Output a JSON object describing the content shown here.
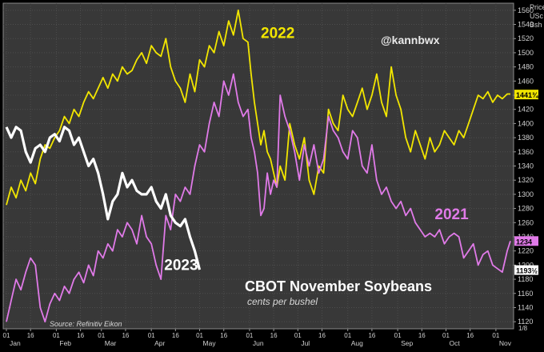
{
  "chart_data": {
    "type": "line",
    "title": "CBOT November Soybeans",
    "subtitle": "cents per bushel",
    "source": "Source: Refinitiv Eikon",
    "watermark": "@kannbwx",
    "ylabel_lines": [
      "Price",
      "USc",
      "Bsh"
    ],
    "ylim": [
      1110,
      1570
    ],
    "y_ticks": [
      1120,
      1140,
      1160,
      1180,
      1200,
      1220,
      1240,
      1260,
      1280,
      1300,
      1320,
      1340,
      1360,
      1380,
      1400,
      1420,
      1440,
      1460,
      1480,
      1500,
      1520,
      1540,
      1560
    ],
    "grid": true,
    "x_range": [
      0,
      313
    ],
    "x_day_ticks": [
      {
        "x": 0,
        "label": "01"
      },
      {
        "x": 15,
        "label": "16"
      },
      {
        "x": 31,
        "label": "01"
      },
      {
        "x": 46,
        "label": "16"
      },
      {
        "x": 59,
        "label": "01"
      },
      {
        "x": 74,
        "label": "16"
      },
      {
        "x": 90,
        "label": "01"
      },
      {
        "x": 105,
        "label": "16"
      },
      {
        "x": 120,
        "label": "01"
      },
      {
        "x": 135,
        "label": "16"
      },
      {
        "x": 151,
        "label": "01"
      },
      {
        "x": 166,
        "label": "16"
      },
      {
        "x": 181,
        "label": "01"
      },
      {
        "x": 196,
        "label": "16"
      },
      {
        "x": 212,
        "label": "01"
      },
      {
        "x": 227,
        "label": "16"
      },
      {
        "x": 243,
        "label": "01"
      },
      {
        "x": 258,
        "label": "16"
      },
      {
        "x": 273,
        "label": "01"
      },
      {
        "x": 288,
        "label": "16"
      },
      {
        "x": 304,
        "label": "01"
      }
    ],
    "x_month_ticks": [
      {
        "x": 0,
        "label": "Jan"
      },
      {
        "x": 31,
        "label": "Feb"
      },
      {
        "x": 59,
        "label": "Mar"
      },
      {
        "x": 90,
        "label": "Apr"
      },
      {
        "x": 120,
        "label": "May"
      },
      {
        "x": 151,
        "label": "Jun"
      },
      {
        "x": 181,
        "label": "Jul"
      },
      {
        "x": 212,
        "label": "Aug"
      },
      {
        "x": 243,
        "label": "Sep"
      },
      {
        "x": 273,
        "label": "Oct"
      },
      {
        "x": 304,
        "label": "Nov"
      }
    ],
    "price_tags": [
      {
        "value": 1441,
        "label": "1441¾",
        "color": "#f2e600",
        "text_color": "#000000"
      },
      {
        "value": 1234,
        "label": "1234",
        "color": "#e07ae8",
        "text_color": "#000000"
      },
      {
        "value": 1193,
        "label": "1193½",
        "color": "#ffffff",
        "text_color": "#000000"
      }
    ],
    "corner_label": "1/8",
    "series": [
      {
        "name": "2022",
        "color": "#f2e600",
        "x": [
          0,
          3,
          6,
          9,
          12,
          15,
          18,
          21,
          24,
          27,
          30,
          33,
          36,
          39,
          42,
          45,
          48,
          51,
          54,
          57,
          60,
          63,
          66,
          69,
          72,
          75,
          78,
          81,
          84,
          87,
          90,
          93,
          96,
          99,
          102,
          105,
          108,
          111,
          114,
          117,
          120,
          123,
          126,
          129,
          132,
          135,
          138,
          141,
          144,
          147,
          150,
          152,
          154,
          156,
          158,
          160,
          162,
          164,
          166,
          168,
          170,
          173,
          176,
          179,
          182,
          185,
          188,
          191,
          194,
          197,
          200,
          203,
          206,
          209,
          212,
          215,
          218,
          221,
          224,
          227,
          230,
          233,
          236,
          239,
          242,
          245,
          248,
          251,
          254,
          257,
          260,
          263,
          266,
          269,
          272,
          275,
          278,
          281,
          284,
          287,
          290,
          293,
          296,
          299,
          302,
          305,
          308,
          311,
          313
        ],
        "values": [
          1285,
          1310,
          1295,
          1320,
          1305,
          1330,
          1315,
          1350,
          1370,
          1365,
          1380,
          1390,
          1410,
          1400,
          1420,
          1410,
          1430,
          1445,
          1435,
          1450,
          1465,
          1450,
          1470,
          1460,
          1480,
          1470,
          1475,
          1490,
          1500,
          1485,
          1510,
          1500,
          1495,
          1520,
          1480,
          1460,
          1450,
          1430,
          1470,
          1445,
          1490,
          1480,
          1510,
          1500,
          1530,
          1510,
          1545,
          1525,
          1560,
          1520,
          1515,
          1470,
          1430,
          1400,
          1370,
          1390,
          1360,
          1350,
          1330,
          1310,
          1340,
          1320,
          1400,
          1370,
          1350,
          1380,
          1320,
          1300,
          1340,
          1330,
          1420,
          1400,
          1390,
          1440,
          1420,
          1410,
          1430,
          1450,
          1420,
          1440,
          1470,
          1430,
          1410,
          1480,
          1440,
          1420,
          1380,
          1360,
          1390,
          1370,
          1350,
          1380,
          1360,
          1370,
          1390,
          1380,
          1370,
          1390,
          1380,
          1400,
          1420,
          1440,
          1435,
          1445,
          1430,
          1440,
          1435,
          1441.75,
          1441.75
        ]
      },
      {
        "name": "2021",
        "color": "#e07ae8",
        "x": [
          0,
          3,
          6,
          9,
          12,
          15,
          18,
          21,
          24,
          27,
          30,
          33,
          36,
          39,
          42,
          45,
          48,
          51,
          54,
          57,
          60,
          63,
          66,
          69,
          72,
          75,
          78,
          81,
          84,
          87,
          90,
          93,
          96,
          99,
          102,
          105,
          108,
          111,
          114,
          117,
          120,
          123,
          126,
          129,
          132,
          135,
          138,
          141,
          144,
          147,
          150,
          152,
          154,
          156,
          158,
          160,
          162,
          164,
          166,
          168,
          170,
          173,
          176,
          179,
          182,
          185,
          188,
          191,
          194,
          197,
          200,
          203,
          206,
          209,
          212,
          215,
          218,
          221,
          224,
          227,
          230,
          233,
          236,
          239,
          242,
          245,
          248,
          251,
          254,
          257,
          260,
          263,
          266,
          269,
          272,
          275,
          278,
          281,
          284,
          287,
          290,
          293,
          296,
          299,
          302,
          305,
          308,
          311,
          313
        ],
        "values": [
          1120,
          1150,
          1180,
          1165,
          1190,
          1210,
          1200,
          1140,
          1120,
          1145,
          1160,
          1150,
          1170,
          1160,
          1180,
          1190,
          1175,
          1200,
          1185,
          1220,
          1210,
          1230,
          1220,
          1250,
          1240,
          1260,
          1250,
          1230,
          1270,
          1240,
          1230,
          1200,
          1180,
          1270,
          1250,
          1300,
          1290,
          1310,
          1300,
          1340,
          1370,
          1360,
          1400,
          1430,
          1410,
          1460,
          1440,
          1470,
          1430,
          1410,
          1420,
          1380,
          1360,
          1330,
          1270,
          1280,
          1330,
          1300,
          1320,
          1310,
          1440,
          1410,
          1390,
          1360,
          1320,
          1370,
          1340,
          1370,
          1330,
          1350,
          1410,
          1390,
          1380,
          1360,
          1350,
          1390,
          1380,
          1340,
          1330,
          1370,
          1320,
          1300,
          1310,
          1290,
          1280,
          1290,
          1270,
          1280,
          1260,
          1250,
          1240,
          1245,
          1240,
          1250,
          1230,
          1240,
          1245,
          1240,
          1210,
          1220,
          1230,
          1200,
          1215,
          1220,
          1200,
          1195,
          1190,
          1220,
          1234
        ]
      },
      {
        "name": "2023",
        "color": "#ffffff",
        "x": [
          0,
          3,
          6,
          9,
          12,
          15,
          18,
          21,
          24,
          27,
          30,
          33,
          36,
          39,
          42,
          45,
          48,
          51,
          54,
          57,
          60,
          63,
          66,
          69,
          72,
          75,
          78,
          81,
          84,
          87,
          90,
          93,
          96,
          99,
          102,
          105,
          108,
          111,
          114,
          117,
          120
        ],
        "values": [
          1395,
          1380,
          1395,
          1390,
          1360,
          1345,
          1365,
          1370,
          1360,
          1380,
          1385,
          1375,
          1395,
          1390,
          1370,
          1380,
          1360,
          1340,
          1350,
          1330,
          1300,
          1265,
          1290,
          1300,
          1330,
          1310,
          1320,
          1305,
          1300,
          1300,
          1310,
          1290,
          1280,
          1300,
          1270,
          1260,
          1255,
          1265,
          1240,
          1220,
          1193.5
        ]
      }
    ],
    "series_labels": [
      {
        "name": "2022",
        "color": "#f2e600",
        "anchor_x": 158,
        "anchor_value": 1521
      },
      {
        "name": "2021",
        "color": "#e07ae8",
        "anchor_x": 266,
        "anchor_value": 1265
      },
      {
        "name": "2023",
        "color": "#ffffff",
        "anchor_x": 98,
        "anchor_value": 1193
      }
    ]
  }
}
